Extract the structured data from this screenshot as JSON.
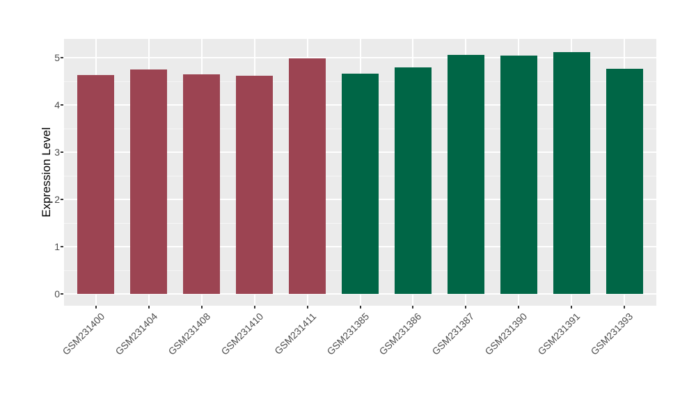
{
  "chart_data": {
    "type": "bar",
    "title": "",
    "xlabel": "",
    "ylabel": "Expression Level",
    "categories": [
      "GSM231400",
      "GSM231404",
      "GSM231408",
      "GSM231410",
      "GSM231411",
      "GSM231385",
      "GSM231386",
      "GSM231387",
      "GSM231390",
      "GSM231391",
      "GSM231393"
    ],
    "values": [
      4.63,
      4.75,
      4.65,
      4.62,
      4.98,
      4.66,
      4.8,
      5.06,
      5.04,
      5.12,
      4.76
    ],
    "bar_groups": [
      "group-a",
      "group-a",
      "group-a",
      "group-a",
      "group-a",
      "group-b",
      "group-b",
      "group-b",
      "group-b",
      "group-b",
      "group-b"
    ],
    "group_colors": {
      "group-a": "#9C4452",
      "group-b": "#006646"
    },
    "yticks": [
      0,
      1,
      2,
      3,
      4,
      5
    ],
    "minor_yticks": [
      0.5,
      1.5,
      2.5,
      3.5,
      4.5
    ],
    "ylim": [
      -0.25,
      5.4
    ],
    "x_label_rotation_deg": 45,
    "grid": true,
    "legend": false,
    "panel_bg": "#EBEBEB",
    "grid_major_color": "#FFFFFF",
    "grid_minor_color": "#F6F6F6",
    "tick_mark_color": "#333333",
    "tick_label_color": "#4D4D4D",
    "axis_title_color": "#000000",
    "page_bg": "#FFFFFF"
  }
}
